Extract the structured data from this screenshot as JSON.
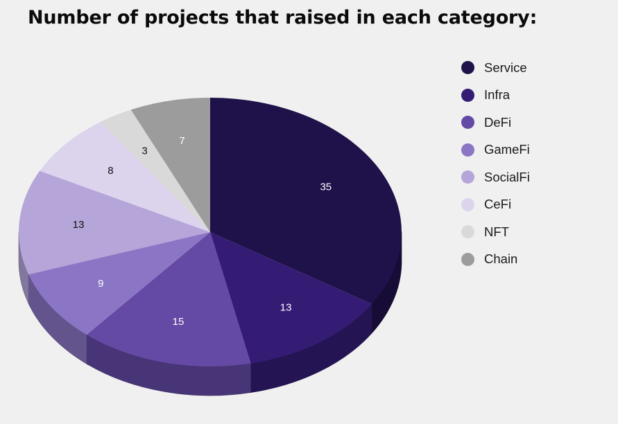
{
  "chart_data": {
    "type": "pie",
    "title": "Number of projects that raised in each category:",
    "categories": [
      "Service",
      "Infra",
      "DeFi",
      "GameFi",
      "SocialFi",
      "CeFi",
      "NFT",
      "Chain"
    ],
    "values": [
      35,
      13,
      15,
      9,
      13,
      8,
      3,
      7
    ],
    "colors": [
      "#1f1149",
      "#341c75",
      "#6449a5",
      "#8b75c5",
      "#b5a5d8",
      "#dcd3ed",
      "#d9d9d9",
      "#9c9c9c"
    ],
    "label_colors": [
      "#ffffff",
      "#ffffff",
      "#ffffff",
      "#ffffff",
      "#111111",
      "#111111",
      "#111111",
      "#ffffff"
    ],
    "legend_position": "right",
    "style": "3d"
  }
}
